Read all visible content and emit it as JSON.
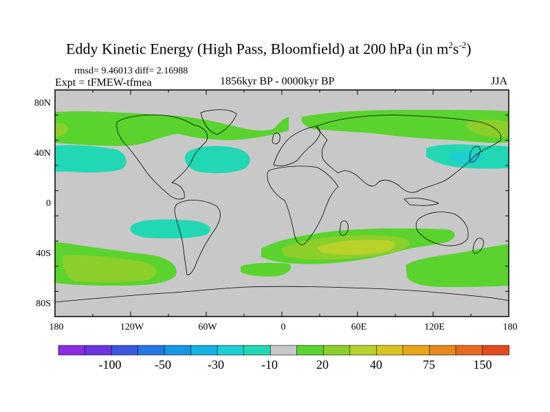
{
  "title": {
    "main": "Eddy Kinetic Energy (High Pass, Bloomfield) at 200 hPa (in m",
    "sup1": "2",
    "mid": "s",
    "sup2": "-2",
    "end": ")"
  },
  "stats": "rmsd= 9.46013 diff= 2.16988",
  "experiment": "Expt = tFMEW-tfmea",
  "period": "1856kyr BP - 0000kyr BP",
  "season": "JJA",
  "axes": {
    "y_ticks": [
      "80N",
      "40N",
      "0",
      "40S",
      "80S"
    ],
    "x_ticks": [
      "180",
      "120W",
      "60W",
      "0",
      "60E",
      "120E",
      "180"
    ]
  },
  "colorbar": {
    "labels": [
      "-100",
      "-50",
      "-30",
      "-10",
      "20",
      "40",
      "75",
      "150"
    ],
    "colors": [
      "#8a2be2",
      "#6a35e0",
      "#3e57e0",
      "#2578e6",
      "#1896e6",
      "#14b2e0",
      "#1ccfd2",
      "#22d8b4",
      "#c8c8c8",
      "#5ad32e",
      "#8ccf2a",
      "#b8d22a",
      "#d8c41e",
      "#e6a818",
      "#e68a1e",
      "#e66a1e",
      "#e24a1c"
    ]
  },
  "colors": {
    "land_background": "#c8c8c8",
    "coastline": "#000000",
    "positive_light": "#5ad32e",
    "positive_mid": "#8ccf2a",
    "positive_high": "#b8d22a",
    "positive_peak": "#d8c41e",
    "negative_light": "#22d8b4",
    "negative_mid": "#1ccfd2"
  }
}
